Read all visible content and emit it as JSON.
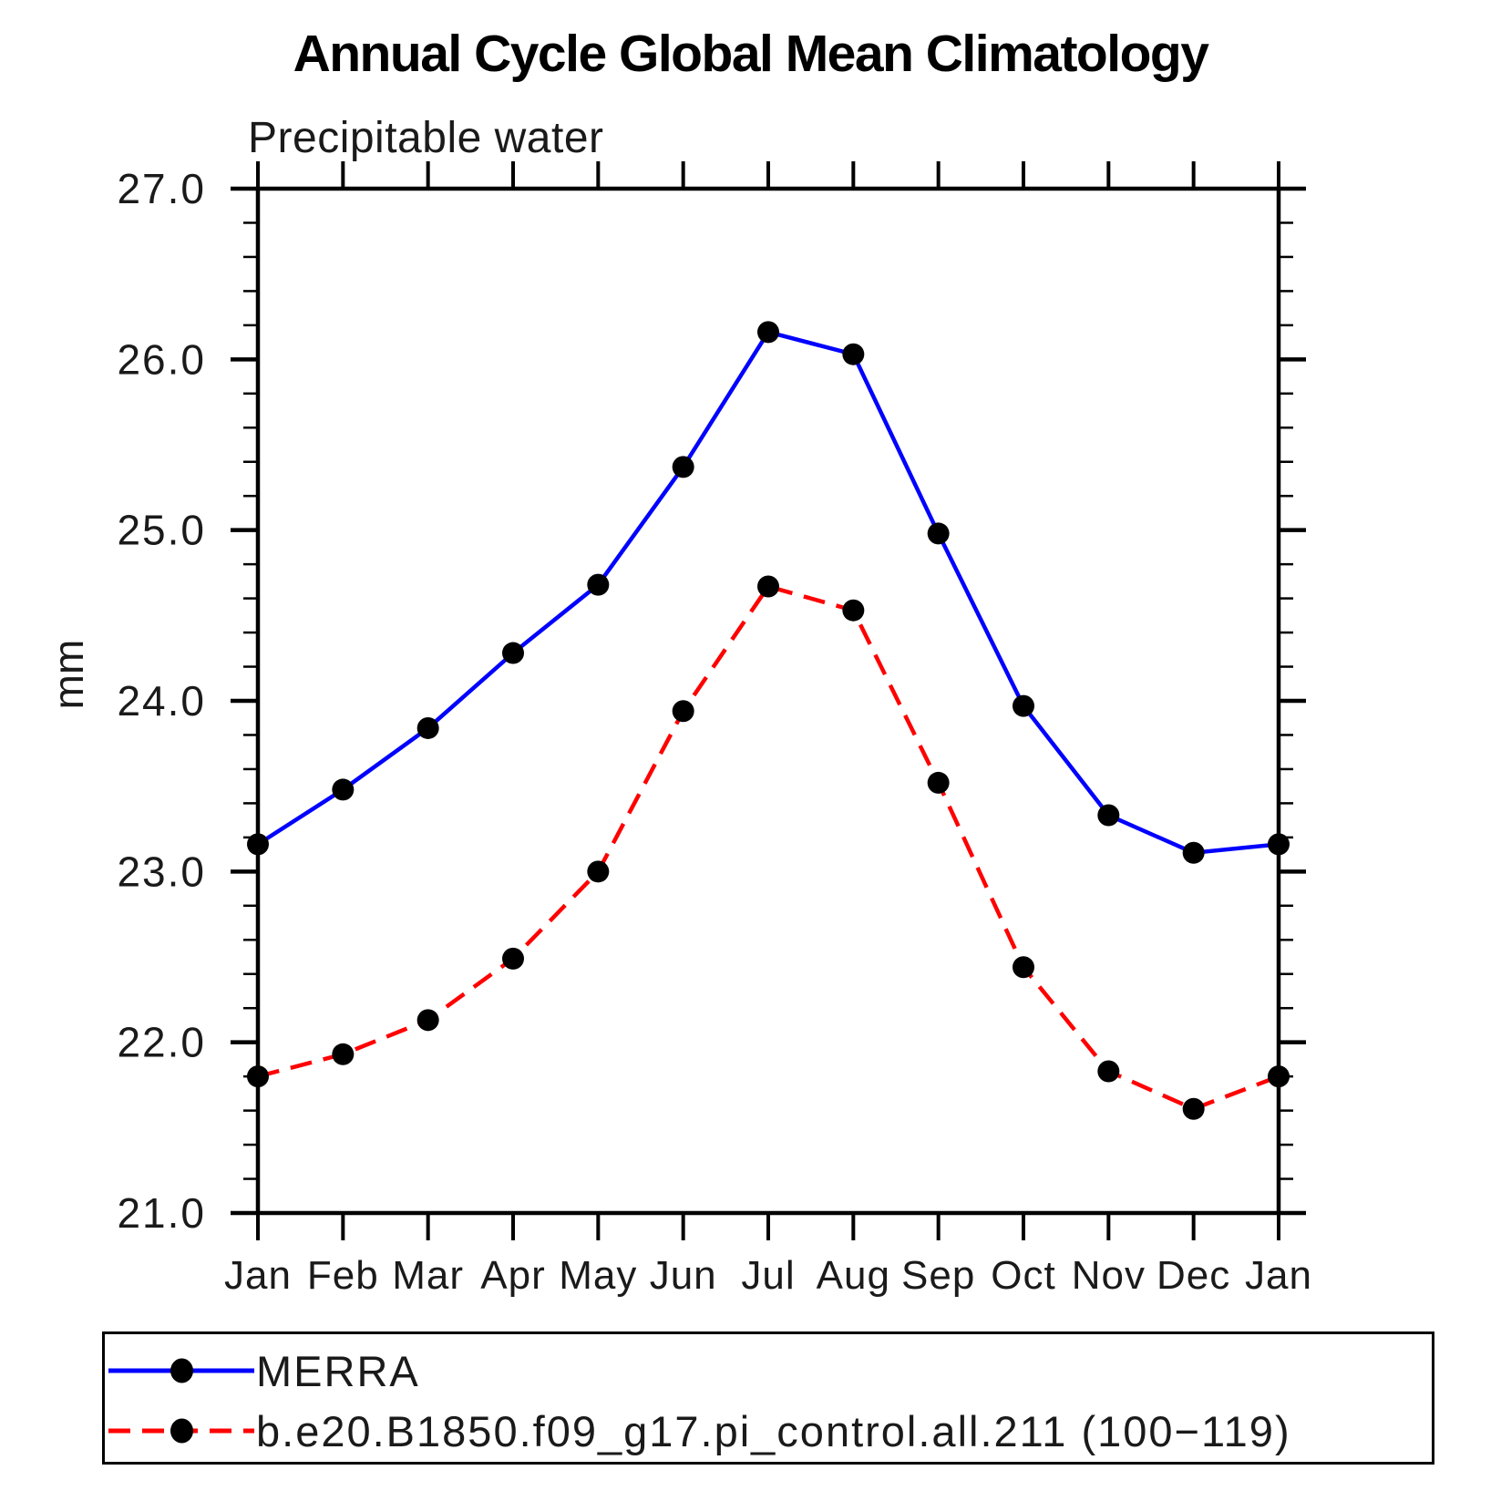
{
  "figure": {
    "title": "Annual Cycle Global Mean Climatology",
    "subtitle": "Precipitable water"
  },
  "chart_data": {
    "type": "line",
    "title": "Annual Cycle Global Mean Climatology",
    "subtitle": "Precipitable water",
    "xlabel": "",
    "ylabel": "mm",
    "ylim": [
      21.0,
      27.0
    ],
    "y_major_step": 1.0,
    "y_minor_step": 0.2,
    "y_tick_labels": [
      "21.0",
      "22.0",
      "23.0",
      "24.0",
      "25.0",
      "26.0",
      "27.0"
    ],
    "grid": false,
    "legend_position": "bottom-box",
    "categories": [
      "Jan",
      "Feb",
      "Mar",
      "Apr",
      "May",
      "Jun",
      "Jul",
      "Aug",
      "Sep",
      "Oct",
      "Nov",
      "Dec",
      "Jan"
    ],
    "series": [
      {
        "name": "MERRA",
        "color": "#0000ff",
        "line_style": "solid",
        "marker": "circle",
        "marker_color": "#000000",
        "values": [
          23.16,
          23.48,
          23.84,
          24.28,
          24.68,
          25.37,
          26.16,
          26.03,
          24.98,
          23.97,
          23.33,
          23.11,
          23.16
        ]
      },
      {
        "name": "b.e20.B1850.f09_g17.pi_control.all.211 (100−119)",
        "color": "#ff0000",
        "line_style": "dashed",
        "marker": "circle",
        "marker_color": "#000000",
        "values": [
          21.8,
          21.93,
          22.13,
          22.49,
          23.0,
          23.94,
          24.67,
          24.53,
          23.52,
          22.44,
          21.83,
          21.61,
          21.8
        ]
      }
    ]
  }
}
